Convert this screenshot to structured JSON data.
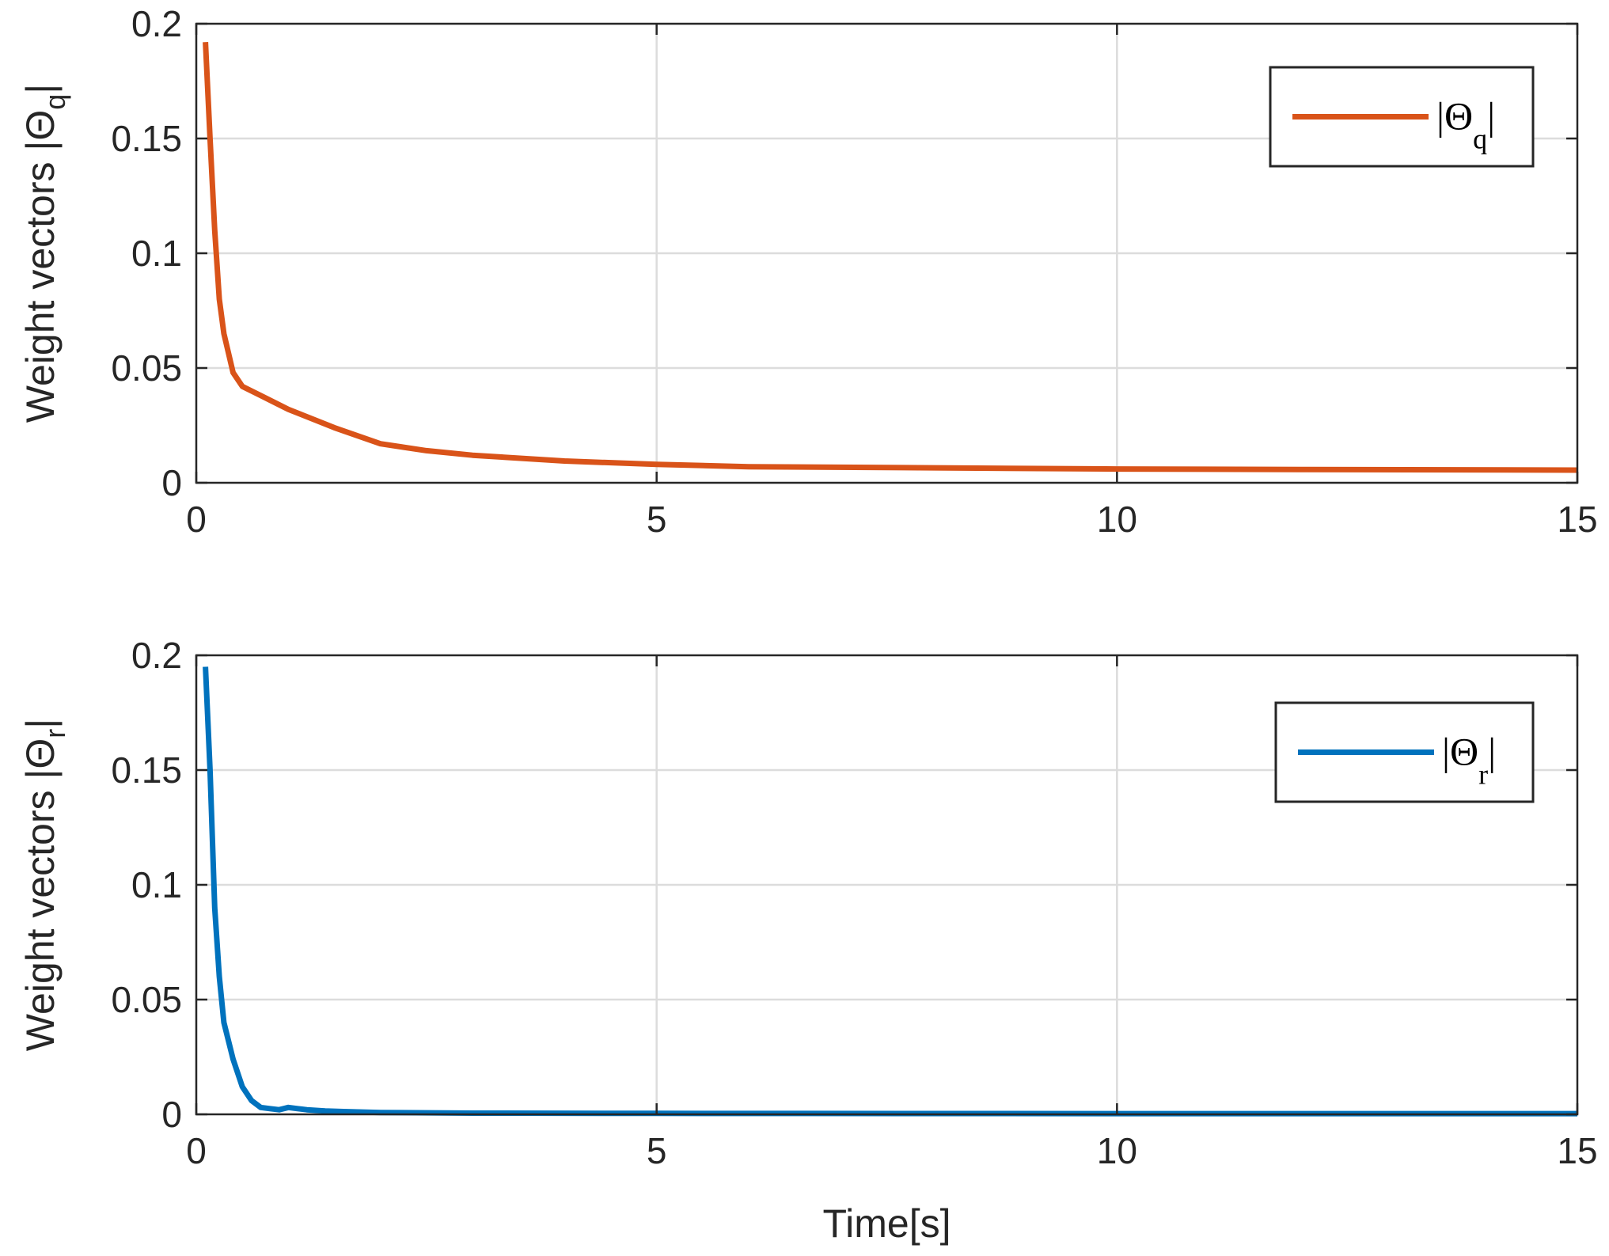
{
  "chart_data": [
    {
      "type": "line",
      "xlabel": "",
      "ylabel": "Weight vectors |Θ",
      "ylabel_sub": "q",
      "ylabel_end": "|",
      "xlim": [
        0,
        15
      ],
      "ylim": [
        0,
        0.2
      ],
      "xticks": [
        0,
        5,
        10,
        15
      ],
      "xtick_labels": [
        "0",
        "5",
        "10",
        "15"
      ],
      "yticks": [
        0,
        0.05,
        0.1,
        0.15,
        0.2
      ],
      "ytick_labels": [
        "0",
        "0.05",
        "0.1",
        "0.15",
        "0.2"
      ],
      "grid": true,
      "legend_position": "top-right",
      "series": [
        {
          "name": "|Θ",
          "name_sub": "q",
          "name_end": "|",
          "color": "#D95319",
          "x": [
            0.1,
            0.15,
            0.2,
            0.25,
            0.3,
            0.4,
            0.5,
            0.7,
            1.0,
            1.5,
            2.0,
            2.5,
            3.0,
            4.0,
            5.0,
            6.0,
            8.0,
            10.0,
            12.0,
            15.0
          ],
          "y": [
            0.192,
            0.15,
            0.11,
            0.08,
            0.065,
            0.048,
            0.042,
            0.038,
            0.032,
            0.024,
            0.017,
            0.014,
            0.012,
            0.0095,
            0.008,
            0.007,
            0.0065,
            0.006,
            0.0058,
            0.0055
          ]
        }
      ]
    },
    {
      "type": "line",
      "xlabel": "Time[s]",
      "ylabel": "Weight vectors |Θ",
      "ylabel_sub": "r",
      "ylabel_end": "|",
      "xlim": [
        0,
        15
      ],
      "ylim": [
        0,
        0.2
      ],
      "xticks": [
        0,
        5,
        10,
        15
      ],
      "xtick_labels": [
        "0",
        "5",
        "10",
        "15"
      ],
      "yticks": [
        0,
        0.05,
        0.1,
        0.15,
        0.2
      ],
      "ytick_labels": [
        "0",
        "0.05",
        "0.1",
        "0.15",
        "0.2"
      ],
      "grid": true,
      "legend_position": "top-right",
      "series": [
        {
          "name": "|Θ",
          "name_sub": "r",
          "name_end": "|",
          "color": "#0072BD",
          "x": [
            0.1,
            0.15,
            0.2,
            0.25,
            0.3,
            0.4,
            0.5,
            0.6,
            0.7,
            0.8,
            0.9,
            1.0,
            1.1,
            1.2,
            1.4,
            1.6,
            1.8,
            2.0,
            3.0,
            5.0,
            10.0,
            15.0
          ],
          "y": [
            0.195,
            0.15,
            0.09,
            0.06,
            0.04,
            0.024,
            0.012,
            0.006,
            0.003,
            0.0025,
            0.002,
            0.003,
            0.0025,
            0.002,
            0.0015,
            0.0012,
            0.001,
            0.0008,
            0.0005,
            0.0004,
            0.0003,
            0.0003
          ]
        }
      ]
    }
  ]
}
